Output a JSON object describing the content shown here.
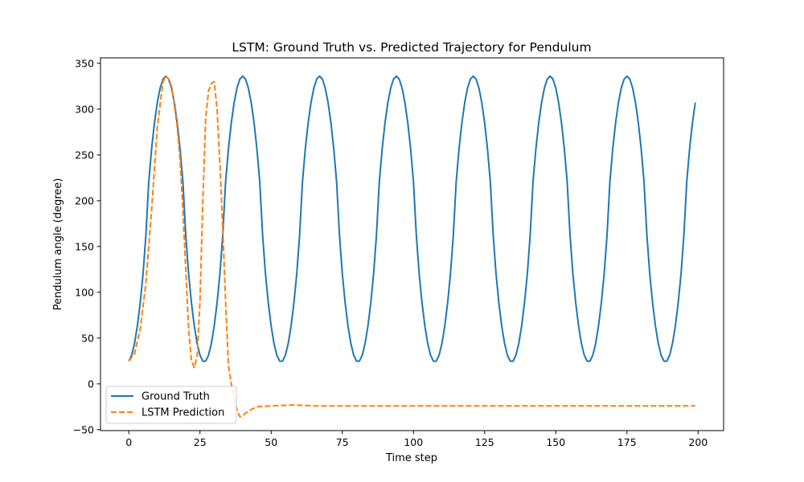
{
  "chart_data": {
    "type": "line",
    "title": "LSTM: Ground Truth vs. Predicted Trajectory for Pendulum",
    "xlabel": "Time step",
    "ylabel": "Pendulum angle (degree)",
    "xlim": [
      -9.95,
      208.95
    ],
    "ylim": [
      -51,
      356
    ],
    "xticks": [
      0,
      25,
      50,
      75,
      100,
      125,
      150,
      175,
      200
    ],
    "yticks": [
      -50,
      0,
      50,
      100,
      150,
      200,
      250,
      300,
      350
    ],
    "grid": false,
    "legend_position": "bottom-left",
    "series": [
      {
        "name": "Ground Truth",
        "color": "#1f77b4",
        "style": "solid",
        "generator": {
          "type": "periodic",
          "x_start": 0,
          "x_end": 199,
          "period": 27.0,
          "peak_x": 13,
          "min": 24,
          "max": 336,
          "sharpness": 1.3
        }
      },
      {
        "name": "LSTM Prediction",
        "color": "#ff7f0e",
        "style": "dashed",
        "points": [
          [
            0,
            25
          ],
          [
            2,
            33
          ],
          [
            4,
            60
          ],
          [
            6,
            110
          ],
          [
            8,
            190
          ],
          [
            10,
            280
          ],
          [
            12,
            330
          ],
          [
            13,
            336
          ],
          [
            14,
            333
          ],
          [
            15,
            325
          ],
          [
            16,
            305
          ],
          [
            17,
            280
          ],
          [
            18,
            245
          ],
          [
            19,
            190
          ],
          [
            20,
            125
          ],
          [
            21,
            60
          ],
          [
            22,
            25
          ],
          [
            23,
            18
          ],
          [
            24,
            30
          ],
          [
            25,
            90
          ],
          [
            26,
            200
          ],
          [
            27,
            290
          ],
          [
            28,
            320
          ],
          [
            29,
            328
          ],
          [
            30,
            330
          ],
          [
            31,
            300
          ],
          [
            32,
            240
          ],
          [
            33,
            170
          ],
          [
            34,
            90
          ],
          [
            35,
            20
          ],
          [
            36,
            0
          ],
          [
            37,
            -15
          ],
          [
            38,
            -28
          ],
          [
            39,
            -36
          ],
          [
            40,
            -35
          ],
          [
            41,
            -32
          ],
          [
            43,
            -28
          ],
          [
            45,
            -25
          ],
          [
            50,
            -24
          ],
          [
            58,
            -23
          ],
          [
            65,
            -24
          ],
          [
            100,
            -24
          ],
          [
            150,
            -24
          ],
          [
            199,
            -24
          ]
        ]
      }
    ]
  }
}
